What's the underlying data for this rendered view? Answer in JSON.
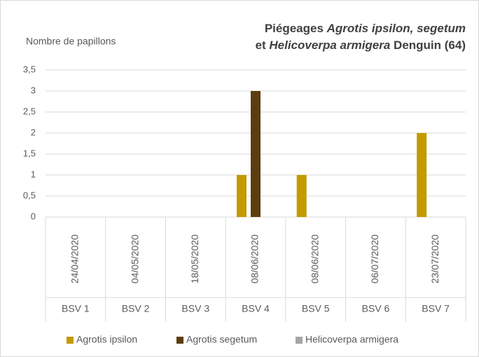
{
  "chart_data": {
    "type": "bar",
    "title_parts": [
      [
        {
          "text": "Piégeages ",
          "italic": false
        },
        {
          "text": "Agrotis ipsilon, segetum",
          "italic": true
        }
      ],
      [
        {
          "text": "et ",
          "italic": false
        },
        {
          "text": "Helicoverpa armigera",
          "italic": true
        },
        {
          "text": " Denguin (64)",
          "italic": false
        }
      ]
    ],
    "y_label": "Nombre de papillons",
    "dates": [
      "24/04/2020",
      "04/05/2020",
      "18/05/2020",
      "08/06/2020",
      "08/06/2020",
      "06/07/2020",
      "23/07/2020"
    ],
    "categories": [
      "BSV 1",
      "BSV 2",
      "BSV 3",
      "BSV 4",
      "BSV 5",
      "BSV 6",
      "BSV 7"
    ],
    "series": [
      {
        "name": "Agrotis ipsilon",
        "color": "#c49a00",
        "values": [
          0,
          0,
          0,
          1,
          1,
          0,
          2
        ]
      },
      {
        "name": "Agrotis segetum",
        "color": "#5c3d0f",
        "values": [
          0,
          0,
          0,
          3,
          0,
          0,
          0
        ]
      },
      {
        "name": "Helicoverpa armigera",
        "color": "#a5a5a5",
        "values": [
          0,
          0,
          0,
          0,
          0,
          0,
          0
        ]
      }
    ],
    "ylim": [
      0,
      3.5
    ],
    "yticks": [
      0,
      {
        "value": 0.5,
        "label": "0,5"
      },
      1,
      {
        "value": 1.5,
        "label": "1,5"
      },
      2,
      {
        "value": 2.5,
        "label": "2,5"
      },
      3,
      {
        "value": 3.5,
        "label": "3,5"
      }
    ],
    "grid": true,
    "legend": "bottom"
  }
}
